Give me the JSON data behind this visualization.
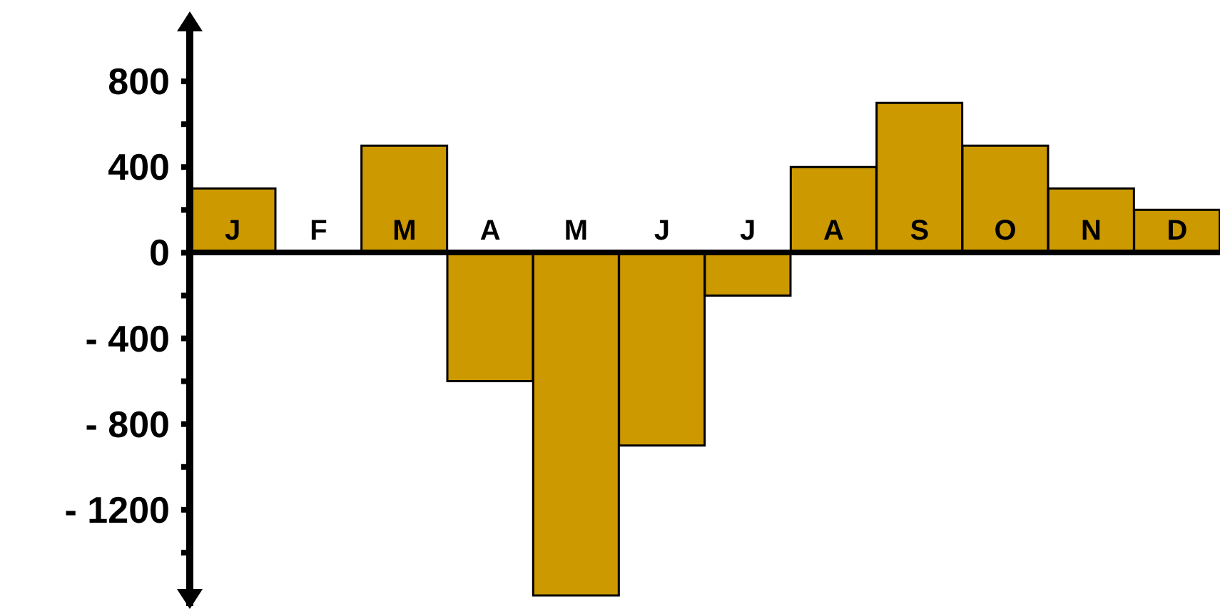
{
  "chart_data": {
    "type": "bar",
    "categories": [
      "J",
      "F",
      "M",
      "A",
      "M",
      "J",
      "J",
      "A",
      "S",
      "O",
      "N",
      "D"
    ],
    "values": [
      300,
      0,
      500,
      -600,
      -1600,
      -900,
      -200,
      400,
      700,
      500,
      300,
      200
    ],
    "color": "#cc9900",
    "ylim": [
      -1650,
      1100
    ],
    "yticks": [
      {
        "value": -1400,
        "label": null
      },
      {
        "value": -1200,
        "label": "- 1200"
      },
      {
        "value": -1000,
        "label": null
      },
      {
        "value": -800,
        "label": "- 800"
      },
      {
        "value": -600,
        "label": null
      },
      {
        "value": -400,
        "label": "- 400"
      },
      {
        "value": -200,
        "label": null
      },
      0,
      {
        "value": 200,
        "label": null
      },
      400,
      {
        "value": 600,
        "label": null
      },
      800
    ],
    "grid": false,
    "legend": false
  }
}
